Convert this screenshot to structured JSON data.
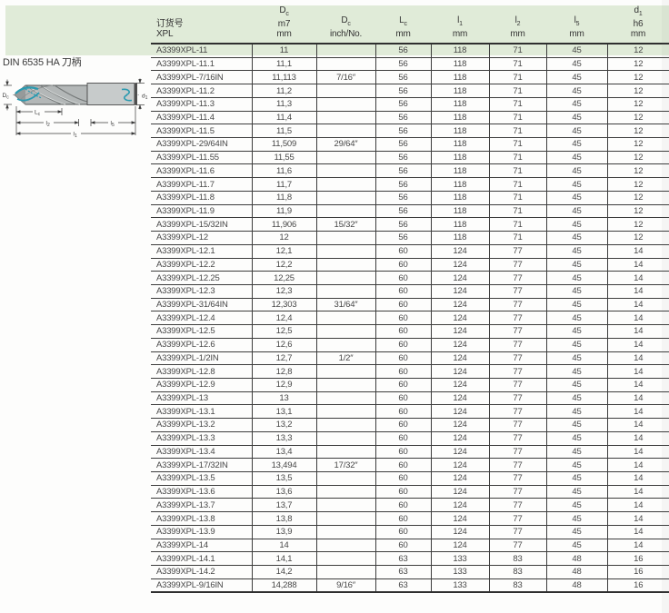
{
  "diagram": {
    "title": "DIN 6535 HA 刀柄",
    "labels": {
      "Dc": {
        "main": "D",
        "sub": "c"
      },
      "d1": {
        "main": "d",
        "sub": "1"
      },
      "Lc": {
        "main": "L",
        "sub": "c"
      },
      "l2": {
        "main": "l",
        "sub": "2"
      },
      "l5": {
        "main": "l",
        "sub": "5"
      },
      "l1": {
        "main": "l",
        "sub": "1"
      }
    },
    "colors": {
      "highlight_teal": "#2a9ab0",
      "body_gray": "#b3b7b7",
      "shank_gray": "#c7cbcb",
      "line_dark": "#3a3a3a"
    }
  },
  "table": {
    "header_band_color": "#e0ebd8",
    "col_keys": [
      "order_no",
      "dc_mm",
      "dc_inch",
      "lc_mm",
      "l1_mm",
      "l2_mm",
      "l5_mm",
      "d1_mm"
    ],
    "header": [
      {
        "lines": [
          {
            "t": "订货号"
          },
          {
            "t": "XPL"
          }
        ]
      },
      {
        "lines": [
          {
            "t": "D",
            "sub": "c"
          },
          {
            "t": "m7"
          },
          {
            "t": "mm"
          }
        ]
      },
      {
        "lines": [
          {
            "t": "D",
            "sub": "c"
          },
          {
            "t": "inch/No."
          }
        ]
      },
      {
        "lines": [
          {
            "t": "L",
            "sub": "c"
          },
          {
            "t": "mm"
          }
        ]
      },
      {
        "lines": [
          {
            "t": "l",
            "sub": "1"
          },
          {
            "t": "mm"
          }
        ]
      },
      {
        "lines": [
          {
            "t": "l",
            "sub": "2"
          },
          {
            "t": "mm"
          }
        ]
      },
      {
        "lines": [
          {
            "t": "l",
            "sub": "5"
          },
          {
            "t": "mm"
          }
        ]
      },
      {
        "lines": [
          {
            "t": "d",
            "sub": "1"
          },
          {
            "t": "h6"
          },
          {
            "t": "mm"
          }
        ]
      }
    ],
    "rows": [
      [
        "A3399XPL-11",
        "11",
        "",
        "56",
        "118",
        "71",
        "45",
        "12"
      ],
      [
        "A3399XPL-11.1",
        "11,1",
        "",
        "56",
        "118",
        "71",
        "45",
        "12"
      ],
      [
        "A3399XPL-7/16IN",
        "11,113",
        "7/16″",
        "56",
        "118",
        "71",
        "45",
        "12"
      ],
      [
        "A3399XPL-11.2",
        "11,2",
        "",
        "56",
        "118",
        "71",
        "45",
        "12"
      ],
      [
        "A3399XPL-11.3",
        "11,3",
        "",
        "56",
        "118",
        "71",
        "45",
        "12"
      ],
      [
        "A3399XPL-11.4",
        "11,4",
        "",
        "56",
        "118",
        "71",
        "45",
        "12"
      ],
      [
        "A3399XPL-11.5",
        "11,5",
        "",
        "56",
        "118",
        "71",
        "45",
        "12"
      ],
      [
        "A3399XPL-29/64IN",
        "11,509",
        "29/64″",
        "56",
        "118",
        "71",
        "45",
        "12"
      ],
      [
        "A3399XPL-11.55",
        "11,55",
        "",
        "56",
        "118",
        "71",
        "45",
        "12"
      ],
      [
        "A3399XPL-11.6",
        "11,6",
        "",
        "56",
        "118",
        "71",
        "45",
        "12"
      ],
      [
        "A3399XPL-11.7",
        "11,7",
        "",
        "56",
        "118",
        "71",
        "45",
        "12"
      ],
      [
        "A3399XPL-11.8",
        "11,8",
        "",
        "56",
        "118",
        "71",
        "45",
        "12"
      ],
      [
        "A3399XPL-11.9",
        "11,9",
        "",
        "56",
        "118",
        "71",
        "45",
        "12"
      ],
      [
        "A3399XPL-15/32IN",
        "11,906",
        "15/32″",
        "56",
        "118",
        "71",
        "45",
        "12"
      ],
      [
        "A3399XPL-12",
        "12",
        "",
        "56",
        "118",
        "71",
        "45",
        "12"
      ],
      [
        "A3399XPL-12.1",
        "12,1",
        "",
        "60",
        "124",
        "77",
        "45",
        "14"
      ],
      [
        "A3399XPL-12.2",
        "12,2",
        "",
        "60",
        "124",
        "77",
        "45",
        "14"
      ],
      [
        "A3399XPL-12.25",
        "12,25",
        "",
        "60",
        "124",
        "77",
        "45",
        "14"
      ],
      [
        "A3399XPL-12.3",
        "12,3",
        "",
        "60",
        "124",
        "77",
        "45",
        "14"
      ],
      [
        "A3399XPL-31/64IN",
        "12,303",
        "31/64″",
        "60",
        "124",
        "77",
        "45",
        "14"
      ],
      [
        "A3399XPL-12.4",
        "12,4",
        "",
        "60",
        "124",
        "77",
        "45",
        "14"
      ],
      [
        "A3399XPL-12.5",
        "12,5",
        "",
        "60",
        "124",
        "77",
        "45",
        "14"
      ],
      [
        "A3399XPL-12.6",
        "12,6",
        "",
        "60",
        "124",
        "77",
        "45",
        "14"
      ],
      [
        "A3399XPL-1/2IN",
        "12,7",
        "1/2″",
        "60",
        "124",
        "77",
        "45",
        "14"
      ],
      [
        "A3399XPL-12.8",
        "12,8",
        "",
        "60",
        "124",
        "77",
        "45",
        "14"
      ],
      [
        "A3399XPL-12.9",
        "12,9",
        "",
        "60",
        "124",
        "77",
        "45",
        "14"
      ],
      [
        "A3399XPL-13",
        "13",
        "",
        "60",
        "124",
        "77",
        "45",
        "14"
      ],
      [
        "A3399XPL-13.1",
        "13,1",
        "",
        "60",
        "124",
        "77",
        "45",
        "14"
      ],
      [
        "A3399XPL-13.2",
        "13,2",
        "",
        "60",
        "124",
        "77",
        "45",
        "14"
      ],
      [
        "A3399XPL-13.3",
        "13,3",
        "",
        "60",
        "124",
        "77",
        "45",
        "14"
      ],
      [
        "A3399XPL-13.4",
        "13,4",
        "",
        "60",
        "124",
        "77",
        "45",
        "14"
      ],
      [
        "A3399XPL-17/32IN",
        "13,494",
        "17/32″",
        "60",
        "124",
        "77",
        "45",
        "14"
      ],
      [
        "A3399XPL-13.5",
        "13,5",
        "",
        "60",
        "124",
        "77",
        "45",
        "14"
      ],
      [
        "A3399XPL-13.6",
        "13,6",
        "",
        "60",
        "124",
        "77",
        "45",
        "14"
      ],
      [
        "A3399XPL-13.7",
        "13,7",
        "",
        "60",
        "124",
        "77",
        "45",
        "14"
      ],
      [
        "A3399XPL-13.8",
        "13,8",
        "",
        "60",
        "124",
        "77",
        "45",
        "14"
      ],
      [
        "A3399XPL-13.9",
        "13,9",
        "",
        "60",
        "124",
        "77",
        "45",
        "14"
      ],
      [
        "A3399XPL-14",
        "14",
        "",
        "60",
        "124",
        "77",
        "45",
        "14"
      ],
      [
        "A3399XPL-14.1",
        "14,1",
        "",
        "63",
        "133",
        "83",
        "48",
        "16"
      ],
      [
        "A3399XPL-14.2",
        "14,2",
        "",
        "63",
        "133",
        "83",
        "48",
        "16"
      ],
      [
        "A3399XPL-9/16IN",
        "14,288",
        "9/16″",
        "63",
        "133",
        "83",
        "48",
        "16"
      ]
    ]
  }
}
